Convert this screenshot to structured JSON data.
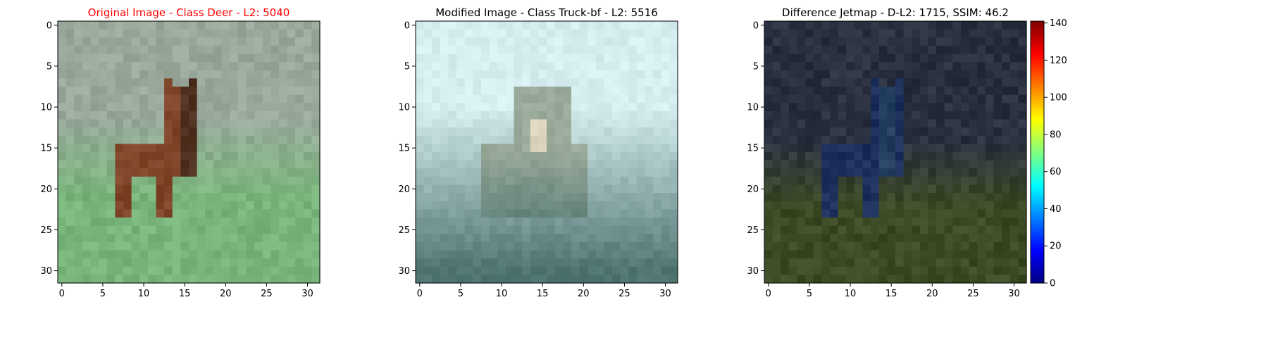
{
  "chart_data": [
    {
      "type": "heatmap",
      "title": "Original Image - Class Deer - L2: 5040",
      "title_color": "#ff0000",
      "xlim": [
        -0.5,
        31.5
      ],
      "ylim": [
        31.5,
        -0.5
      ],
      "xticks": [
        0,
        5,
        10,
        15,
        20,
        25,
        30
      ],
      "yticks": [
        0,
        5,
        10,
        15,
        20,
        25,
        30
      ],
      "image_kind": "deer",
      "background_color": "#9aa89c",
      "foreground_color": "#8b4a2a",
      "grass_color": "#79b57b"
    },
    {
      "type": "heatmap",
      "title": "Modified Image - Class Truck-bf - L2: 5516",
      "title_color": "#000000",
      "xlim": [
        -0.5,
        31.5
      ],
      "ylim": [
        31.5,
        -0.5
      ],
      "xticks": [
        0,
        5,
        10,
        15,
        20,
        25,
        30
      ],
      "yticks": [
        0,
        5,
        10,
        15,
        20,
        25,
        30
      ],
      "image_kind": "truck",
      "background_color": "#d6eef0",
      "foreground_color": "#9aaa9a",
      "grass_color": "#4f7470"
    },
    {
      "type": "heatmap",
      "title": "Difference Jetmap - D-L2: 1715, SSIM: 46.2",
      "title_color": "#000000",
      "xlim": [
        -0.5,
        31.5
      ],
      "ylim": [
        31.5,
        -0.5
      ],
      "xticks": [
        0,
        5,
        10,
        15,
        20,
        25,
        30
      ],
      "yticks": [
        0,
        5,
        10,
        15,
        20,
        25,
        30
      ],
      "image_kind": "difference",
      "background_color": "#2a3040",
      "foreground_color": "#1a2a5a",
      "grass_color": "#3d4a26",
      "colorbar": {
        "min": 0,
        "max": 141,
        "ticks": [
          0,
          20,
          40,
          60,
          80,
          100,
          120,
          140
        ],
        "colormap": "jet"
      }
    }
  ]
}
